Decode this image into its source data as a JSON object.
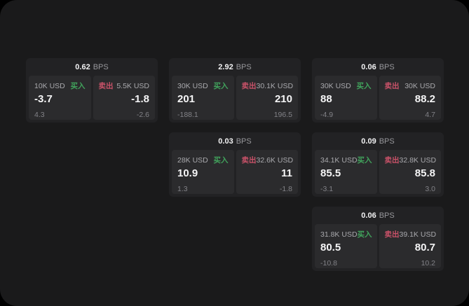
{
  "colors": {
    "page_background": "#000000",
    "window_background": "#1a1a1b",
    "card_background": "#222224",
    "panel_background": "#2b2b2d",
    "buy_green": "#41a35c",
    "sell_red": "#c95269",
    "value_white": "#f5f5f6",
    "label_grey": "#a9a9ad",
    "sub_grey": "#828287"
  },
  "cards": [
    {
      "row": 1,
      "col": 1,
      "bps_value": "0.62",
      "bps_unit": "BPS",
      "buy": {
        "amount": "10K USD",
        "side_label": "买入",
        "value": "-3.7",
        "sub": "4.3"
      },
      "sell": {
        "amount": "5.5K USD",
        "side_label": "卖出",
        "value": "-1.8",
        "sub": "-2.6"
      }
    },
    {
      "row": 1,
      "col": 2,
      "bps_value": "2.92",
      "bps_unit": "BPS",
      "buy": {
        "amount": "30K USD",
        "side_label": "买入",
        "value": "201",
        "sub": "-188.1"
      },
      "sell": {
        "amount": "30.1K USD",
        "side_label": "卖出",
        "value": "210",
        "sub": "196.5"
      }
    },
    {
      "row": 1,
      "col": 3,
      "bps_value": "0.06",
      "bps_unit": "BPS",
      "buy": {
        "amount": "30K USD",
        "side_label": "买入",
        "value": "88",
        "sub": "-4.9"
      },
      "sell": {
        "amount": "30K USD",
        "side_label": "卖出",
        "value": "88.2",
        "sub": "4.7"
      }
    },
    {
      "row": 2,
      "col": 2,
      "bps_value": "0.03",
      "bps_unit": "BPS",
      "buy": {
        "amount": "28K USD",
        "side_label": "买入",
        "value": "10.9",
        "sub": "1.3"
      },
      "sell": {
        "amount": "32.6K USD",
        "side_label": "卖出",
        "value": "11",
        "sub": "-1.8"
      }
    },
    {
      "row": 2,
      "col": 3,
      "bps_value": "0.09",
      "bps_unit": "BPS",
      "buy": {
        "amount": "34.1K USD",
        "side_label": "买入",
        "value": "85.5",
        "sub": "-3.1"
      },
      "sell": {
        "amount": "32.8K USD",
        "side_label": "卖出",
        "value": "85.8",
        "sub": "3.0"
      }
    },
    {
      "row": 3,
      "col": 3,
      "bps_value": "0.06",
      "bps_unit": "BPS",
      "buy": {
        "amount": "31.8K USD",
        "side_label": "买入",
        "value": "80.5",
        "sub": "-10.8"
      },
      "sell": {
        "amount": "39.1K USD",
        "side_label": "卖出",
        "value": "80.7",
        "sub": "10.2"
      }
    }
  ]
}
